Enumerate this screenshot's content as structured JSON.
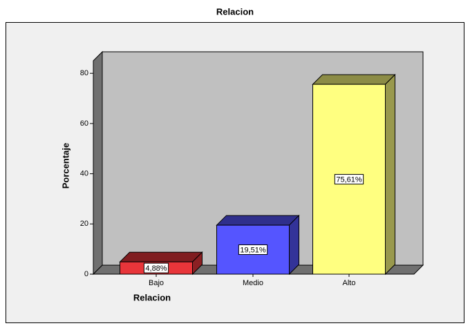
{
  "chart_data": {
    "type": "bar3d",
    "title": "Relacion",
    "x_label": "Relacion",
    "y_label": "Porcentaje",
    "categories": [
      "Bajo",
      "Medio",
      "Alto"
    ],
    "values": [
      4.88,
      19.51,
      75.61
    ],
    "value_labels": [
      "4,88%",
      "19,51%",
      "75,61%"
    ],
    "colors": [
      "#e8353a",
      "#5555ff",
      "#ffff80"
    ],
    "ylim": [
      0,
      85
    ],
    "yticks": [
      0,
      20,
      40,
      60,
      80
    ]
  }
}
